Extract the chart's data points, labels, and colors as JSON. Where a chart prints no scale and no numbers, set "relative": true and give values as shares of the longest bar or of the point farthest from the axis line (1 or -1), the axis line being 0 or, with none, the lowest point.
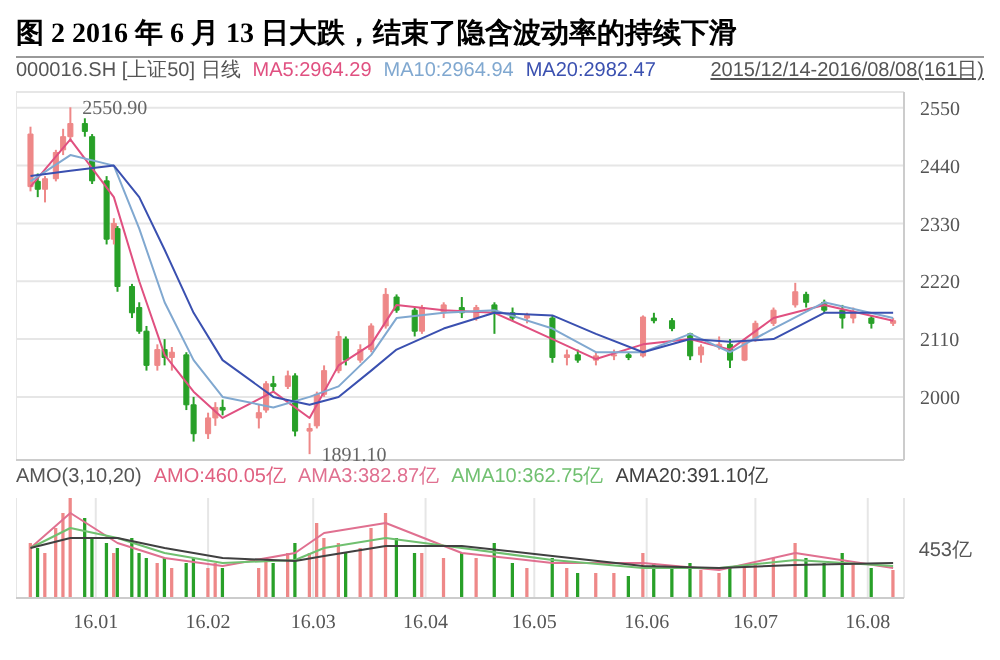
{
  "chart_data": [
    {
      "type": "candlestick",
      "title": "图 2 2016 年 6 月 13 日大跌，结束了隐含波动率的持续下滑",
      "subtitle": "000016.SH [上证50] 日线",
      "annotations": [
        "2015/12/14-2016/08/08(161日)",
        {
          "text": "2550.90",
          "x": "2015-12-25",
          "y": 2550.9
        },
        {
          "text": "1891.10",
          "x": "2016-02-29",
          "y": 1891.1
        }
      ],
      "x": [
        "2015-12-14",
        "2015-12-16",
        "2015-12-18",
        "2015-12-21",
        "2015-12-23",
        "2015-12-25",
        "2015-12-29",
        "2015-12-31",
        "2016-01-04",
        "2016-01-06",
        "2016-01-07",
        "2016-01-11",
        "2016-01-13",
        "2016-01-15",
        "2016-01-18",
        "2016-01-20",
        "2016-01-22",
        "2016-01-26",
        "2016-01-28",
        "2016-02-01",
        "2016-02-03",
        "2016-02-05",
        "2016-02-15",
        "2016-02-17",
        "2016-02-19",
        "2016-02-23",
        "2016-02-25",
        "2016-02-29",
        "2016-03-02",
        "2016-03-04",
        "2016-03-08",
        "2016-03-10",
        "2016-03-14",
        "2016-03-17",
        "2016-03-21",
        "2016-03-24",
        "2016-03-29",
        "2016-03-31",
        "2016-04-06",
        "2016-04-11",
        "2016-04-15",
        "2016-04-20",
        "2016-04-25",
        "2016-04-29",
        "2016-05-06",
        "2016-05-10",
        "2016-05-13",
        "2016-05-18",
        "2016-05-23",
        "2016-05-27",
        "2016-05-31",
        "2016-06-03",
        "2016-06-08",
        "2016-06-13",
        "2016-06-16",
        "2016-06-21",
        "2016-06-24",
        "2016-06-28",
        "2016-07-01",
        "2016-07-06",
        "2016-07-12",
        "2016-07-15",
        "2016-07-20",
        "2016-07-25",
        "2016-07-28",
        "2016-08-02",
        "2016-08-08"
      ],
      "ohlc": [
        [
          2400,
          2514,
          2391,
          2500
        ],
        [
          2410,
          2425,
          2380,
          2395
        ],
        [
          2395,
          2420,
          2370,
          2415
        ],
        [
          2415,
          2470,
          2410,
          2465
        ],
        [
          2470,
          2510,
          2460,
          2495
        ],
        [
          2495,
          2550.9,
          2485,
          2520
        ],
        [
          2520,
          2530,
          2495,
          2505
        ],
        [
          2495,
          2500,
          2405,
          2411
        ],
        [
          2411,
          2420,
          2290,
          2300
        ],
        [
          2300,
          2340,
          2290,
          2330
        ],
        [
          2320,
          2325,
          2200,
          2210
        ],
        [
          2210,
          2215,
          2150,
          2160
        ],
        [
          2170,
          2180,
          2120,
          2125
        ],
        [
          2125,
          2135,
          2050,
          2060
        ],
        [
          2060,
          2100,
          2050,
          2090
        ],
        [
          2090,
          2110,
          2060,
          2075
        ],
        [
          2075,
          2095,
          2050,
          2085
        ],
        [
          2080,
          2085,
          1975,
          1985
        ],
        [
          1985,
          2000,
          1915,
          1930
        ],
        [
          1930,
          1970,
          1920,
          1960
        ],
        [
          1960,
          1990,
          1945,
          1980
        ],
        [
          1980,
          1995,
          1965,
          1975
        ],
        [
          1960,
          1985,
          1940,
          1970
        ],
        [
          1975,
          2030,
          1970,
          2025
        ],
        [
          2025,
          2040,
          2010,
          2020
        ],
        [
          2020,
          2050,
          2015,
          2040
        ],
        [
          2040,
          2045,
          1925,
          1935
        ],
        [
          1935,
          1950,
          1891.1,
          1940
        ],
        [
          1945,
          2010,
          1940,
          2005
        ],
        [
          2005,
          2060,
          2000,
          2050
        ],
        [
          2050,
          2125,
          2045,
          2115
        ],
        [
          2110,
          2115,
          2060,
          2070
        ],
        [
          2070,
          2100,
          2065,
          2090
        ],
        [
          2090,
          2140,
          2085,
          2135
        ],
        [
          2135,
          2207,
          2130,
          2195
        ],
        [
          2190,
          2195,
          2160,
          2165
        ],
        [
          2165,
          2170,
          2115,
          2125
        ],
        [
          2125,
          2175,
          2120,
          2170
        ],
        [
          2160,
          2180,
          2150,
          2175
        ],
        [
          2170,
          2190,
          2150,
          2160
        ],
        [
          2150,
          2175,
          2145,
          2170
        ],
        [
          2175,
          2180,
          2120,
          2160
        ],
        [
          2160,
          2170,
          2145,
          2150
        ],
        [
          2150,
          2160,
          2140,
          2155
        ],
        [
          2150,
          2155,
          2065,
          2075
        ],
        [
          2075,
          2090,
          2060,
          2080
        ],
        [
          2080,
          2090,
          2065,
          2070
        ],
        [
          2070,
          2085,
          2060,
          2078
        ],
        [
          2078,
          2090,
          2070,
          2080
        ],
        [
          2080,
          2085,
          2070,
          2075
        ],
        [
          2078,
          2155,
          2075,
          2152
        ],
        [
          2150,
          2160,
          2140,
          2145
        ],
        [
          2145,
          2150,
          2125,
          2130
        ],
        [
          2120,
          2122,
          2070,
          2078
        ],
        [
          2080,
          2100,
          2065,
          2095
        ],
        [
          2095,
          2115,
          2090,
          2100
        ],
        [
          2100,
          2110,
          2055,
          2070
        ],
        [
          2070,
          2110,
          2068,
          2105
        ],
        [
          2110,
          2145,
          2105,
          2140
        ],
        [
          2140,
          2170,
          2135,
          2165
        ],
        [
          2175,
          2217,
          2170,
          2200
        ],
        [
          2195,
          2200,
          2170,
          2180
        ],
        [
          2180,
          2185,
          2160,
          2165
        ],
        [
          2165,
          2175,
          2130,
          2150
        ],
        [
          2150,
          2170,
          2140,
          2160
        ],
        [
          2150,
          2155,
          2130,
          2140
        ],
        [
          2140,
          2150,
          2135,
          2145
        ]
      ],
      "colors": [
        "#ee8888",
        "#28a028",
        "#ee8888",
        "#ee8888",
        "#ee8888",
        "#ee8888",
        "#28a028",
        "#28a028",
        "#28a028",
        "#ee8888",
        "#28a028",
        "#28a028",
        "#28a028",
        "#28a028",
        "#ee8888",
        "#28a028",
        "#ee8888",
        "#28a028",
        "#28a028",
        "#ee8888",
        "#ee8888",
        "#28a028",
        "#ee8888",
        "#ee8888",
        "#28a028",
        "#ee8888",
        "#28a028",
        "#ee8888",
        "#ee8888",
        "#ee8888",
        "#ee8888",
        "#28a028",
        "#ee8888",
        "#ee8888",
        "#ee8888",
        "#28a028",
        "#28a028",
        "#ee8888",
        "#ee8888",
        "#28a028",
        "#ee8888",
        "#28a028",
        "#28a028",
        "#ee8888",
        "#28a028",
        "#ee8888",
        "#28a028",
        "#ee8888",
        "#ee8888",
        "#28a028",
        "#ee8888",
        "#28a028",
        "#28a028",
        "#28a028",
        "#ee8888",
        "#ee8888",
        "#28a028",
        "#ee8888",
        "#ee8888",
        "#ee8888",
        "#ee8888",
        "#28a028",
        "#28a028",
        "#28a028",
        "#ee8888",
        "#28a028",
        "#ee8888"
      ],
      "series": [
        {
          "name": "MA5:2964.29",
          "type": "line",
          "color": "#e05080",
          "x": [
            "2015-12-14",
            "2015-12-25",
            "2016-01-06",
            "2016-01-13",
            "2016-01-20",
            "2016-01-28",
            "2016-02-05",
            "2016-02-19",
            "2016-02-29",
            "2016-03-08",
            "2016-03-17",
            "2016-03-24",
            "2016-04-06",
            "2016-04-20",
            "2016-05-06",
            "2016-05-18",
            "2016-05-31",
            "2016-06-13",
            "2016-06-24",
            "2016-07-06",
            "2016-07-20",
            "2016-08-08"
          ],
          "values": [
            2400,
            2490,
            2380,
            2220,
            2080,
            2010,
            1960,
            2010,
            1960,
            2060,
            2100,
            2175,
            2165,
            2160,
            2110,
            2072,
            2100,
            2110,
            2090,
            2150,
            2175,
            2145
          ]
        },
        {
          "name": "MA10:2964.94",
          "type": "line",
          "color": "#80a8d0",
          "x": [
            "2015-12-14",
            "2015-12-25",
            "2016-01-06",
            "2016-01-13",
            "2016-01-20",
            "2016-01-28",
            "2016-02-05",
            "2016-02-19",
            "2016-02-29",
            "2016-03-08",
            "2016-03-17",
            "2016-03-24",
            "2016-04-06",
            "2016-04-20",
            "2016-05-06",
            "2016-05-18",
            "2016-05-31",
            "2016-06-13",
            "2016-06-24",
            "2016-07-06",
            "2016-07-20",
            "2016-08-08"
          ],
          "values": [
            2410,
            2460,
            2440,
            2320,
            2180,
            2070,
            2000,
            1980,
            2000,
            2020,
            2080,
            2150,
            2160,
            2165,
            2130,
            2085,
            2085,
            2120,
            2085,
            2130,
            2180,
            2150
          ]
        },
        {
          "name": "MA20:2982.47",
          "type": "line",
          "color": "#3a50b0",
          "x": [
            "2015-12-14",
            "2015-12-25",
            "2016-01-06",
            "2016-01-13",
            "2016-01-20",
            "2016-01-28",
            "2016-02-05",
            "2016-02-19",
            "2016-02-29",
            "2016-03-08",
            "2016-03-17",
            "2016-03-24",
            "2016-04-06",
            "2016-04-20",
            "2016-05-06",
            "2016-05-18",
            "2016-05-31",
            "2016-06-13",
            "2016-06-24",
            "2016-07-06",
            "2016-07-20",
            "2016-08-08"
          ],
          "values": [
            2420,
            2430,
            2440,
            2380,
            2280,
            2160,
            2070,
            2000,
            1985,
            2000,
            2050,
            2090,
            2130,
            2160,
            2155,
            2120,
            2085,
            2110,
            2105,
            2110,
            2160,
            2160
          ]
        }
      ],
      "xlim": [
        "2015-12-10",
        "2016-08-11"
      ],
      "xticks": [
        {
          "value": "2016-01-01",
          "label": null
        },
        {
          "value": "2016-02-01",
          "label": null
        },
        {
          "value": "2016-03-01",
          "label": null
        },
        {
          "value": "2016-04-01",
          "label": null
        },
        {
          "value": "2016-05-01",
          "label": null
        },
        {
          "value": "2016-06-01",
          "label": null
        },
        {
          "value": "2016-07-01",
          "label": null
        },
        {
          "value": "2016-08-01",
          "label": null
        }
      ],
      "ylim": [
        1880,
        2580
      ],
      "yticks": [
        2000,
        2110,
        2220,
        2330,
        2440,
        2550
      ],
      "grid": true,
      "legend": "top left",
      "tick_labels": "y"
    },
    {
      "type": "bar",
      "relative": true,
      "annotations": [
        "AMO(3,10,20)",
        "453亿"
      ],
      "x": [
        "2015-12-14",
        "2015-12-16",
        "2015-12-18",
        "2015-12-21",
        "2015-12-23",
        "2015-12-25",
        "2015-12-29",
        "2015-12-31",
        "2016-01-04",
        "2016-01-06",
        "2016-01-07",
        "2016-01-11",
        "2016-01-13",
        "2016-01-15",
        "2016-01-18",
        "2016-01-20",
        "2016-01-22",
        "2016-01-26",
        "2016-01-28",
        "2016-02-01",
        "2016-02-03",
        "2016-02-05",
        "2016-02-15",
        "2016-02-17",
        "2016-02-19",
        "2016-02-23",
        "2016-02-25",
        "2016-02-29",
        "2016-03-02",
        "2016-03-04",
        "2016-03-08",
        "2016-03-10",
        "2016-03-14",
        "2016-03-17",
        "2016-03-21",
        "2016-03-24",
        "2016-03-29",
        "2016-03-31",
        "2016-04-06",
        "2016-04-11",
        "2016-04-15",
        "2016-04-20",
        "2016-04-25",
        "2016-04-29",
        "2016-05-06",
        "2016-05-10",
        "2016-05-13",
        "2016-05-18",
        "2016-05-23",
        "2016-05-27",
        "2016-05-31",
        "2016-06-03",
        "2016-06-08",
        "2016-06-13",
        "2016-06-16",
        "2016-06-21",
        "2016-06-24",
        "2016-06-28",
        "2016-07-01",
        "2016-07-06",
        "2016-07-12",
        "2016-07-15",
        "2016-07-20",
        "2016-07-25",
        "2016-07-28",
        "2016-08-02",
        "2016-08-08"
      ],
      "series": [
        {
          "name": "AMO:460.05亿",
          "type": "bar",
          "color": "#e06080",
          "colors": [
            "#ee8888",
            "#28a028",
            "#ee8888",
            "#ee8888",
            "#ee8888",
            "#ee8888",
            "#28a028",
            "#28a028",
            "#28a028",
            "#ee8888",
            "#28a028",
            "#28a028",
            "#28a028",
            "#28a028",
            "#ee8888",
            "#28a028",
            "#ee8888",
            "#28a028",
            "#28a028",
            "#ee8888",
            "#ee8888",
            "#28a028",
            "#ee8888",
            "#ee8888",
            "#28a028",
            "#ee8888",
            "#28a028",
            "#ee8888",
            "#ee8888",
            "#ee8888",
            "#ee8888",
            "#28a028",
            "#ee8888",
            "#ee8888",
            "#ee8888",
            "#28a028",
            "#28a028",
            "#ee8888",
            "#ee8888",
            "#28a028",
            "#ee8888",
            "#28a028",
            "#28a028",
            "#ee8888",
            "#28a028",
            "#ee8888",
            "#28a028",
            "#ee8888",
            "#ee8888",
            "#28a028",
            "#ee8888",
            "#28a028",
            "#28a028",
            "#28a028",
            "#ee8888",
            "#ee8888",
            "#28a028",
            "#ee8888",
            "#ee8888",
            "#ee8888",
            "#ee8888",
            "#28a028",
            "#28a028",
            "#28a028",
            "#ee8888",
            "#28a028",
            "#ee8888"
          ],
          "values": [
            0.55,
            0.5,
            0.45,
            0.7,
            0.85,
            1,
            0.8,
            0.6,
            0.55,
            0.45,
            0.5,
            0.6,
            0.45,
            0.4,
            0.35,
            0.4,
            0.3,
            0.35,
            0.4,
            0.3,
            0.35,
            0.3,
            0.3,
            0.4,
            0.35,
            0.45,
            0.55,
            0.45,
            0.75,
            0.6,
            0.55,
            0.45,
            0.5,
            0.7,
            0.85,
            0.6,
            0.45,
            0.45,
            0.4,
            0.45,
            0.4,
            0.55,
            0.35,
            0.3,
            0.4,
            0.3,
            0.25,
            0.25,
            0.25,
            0.22,
            0.45,
            0.35,
            0.3,
            0.35,
            0.28,
            0.25,
            0.3,
            0.3,
            0.35,
            0.4,
            0.55,
            0.4,
            0.35,
            0.45,
            0.35,
            0.3,
            0.28
          ]
        },
        {
          "name": "AMA3:382.87亿",
          "type": "line",
          "color": "#e07090",
          "x": [
            "2015-12-14",
            "2015-12-25",
            "2016-01-07",
            "2016-01-20",
            "2016-02-05",
            "2016-02-25",
            "2016-03-04",
            "2016-03-21",
            "2016-04-11",
            "2016-05-06",
            "2016-05-31",
            "2016-06-21",
            "2016-07-12",
            "2016-08-08"
          ],
          "values": [
            0.5,
            0.85,
            0.55,
            0.4,
            0.32,
            0.45,
            0.65,
            0.75,
            0.45,
            0.35,
            0.35,
            0.28,
            0.45,
            0.3
          ]
        },
        {
          "name": "AMA10:362.75亿",
          "type": "line",
          "color": "#70c070",
          "x": [
            "2015-12-14",
            "2015-12-25",
            "2016-01-07",
            "2016-01-20",
            "2016-02-05",
            "2016-02-25",
            "2016-03-04",
            "2016-03-21",
            "2016-04-11",
            "2016-05-06",
            "2016-05-31",
            "2016-06-21",
            "2016-07-12",
            "2016-08-08"
          ],
          "values": [
            0.5,
            0.7,
            0.6,
            0.45,
            0.35,
            0.38,
            0.5,
            0.6,
            0.5,
            0.38,
            0.3,
            0.3,
            0.38,
            0.32
          ]
        },
        {
          "name": "AMA20:391.10亿",
          "type": "line",
          "color": "#404040",
          "x": [
            "2015-12-14",
            "2015-12-25",
            "2016-01-07",
            "2016-01-20",
            "2016-02-05",
            "2016-02-25",
            "2016-03-04",
            "2016-03-21",
            "2016-04-11",
            "2016-05-06",
            "2016-05-31",
            "2016-06-21",
            "2016-07-12",
            "2016-08-08"
          ],
          "values": [
            0.5,
            0.6,
            0.6,
            0.5,
            0.4,
            0.37,
            0.42,
            0.52,
            0.52,
            0.42,
            0.32,
            0.3,
            0.33,
            0.35
          ]
        }
      ],
      "xlim": [
        "2015-12-10",
        "2016-08-11"
      ],
      "xticks": [
        {
          "value": "2016-01-01",
          "label": "16.01"
        },
        {
          "value": "2016-02-01",
          "label": "16.02"
        },
        {
          "value": "2016-03-01",
          "label": "16.03"
        },
        {
          "value": "2016-04-01",
          "label": "16.04"
        },
        {
          "value": "2016-05-01",
          "label": "16.05"
        },
        {
          "value": "2016-06-01",
          "label": "16.06"
        },
        {
          "value": "2016-07-01",
          "label": "16.07"
        },
        {
          "value": "2016-08-01",
          "label": "16.08"
        }
      ],
      "grid": true,
      "legend": "top left",
      "tick_labels": "x"
    }
  ]
}
